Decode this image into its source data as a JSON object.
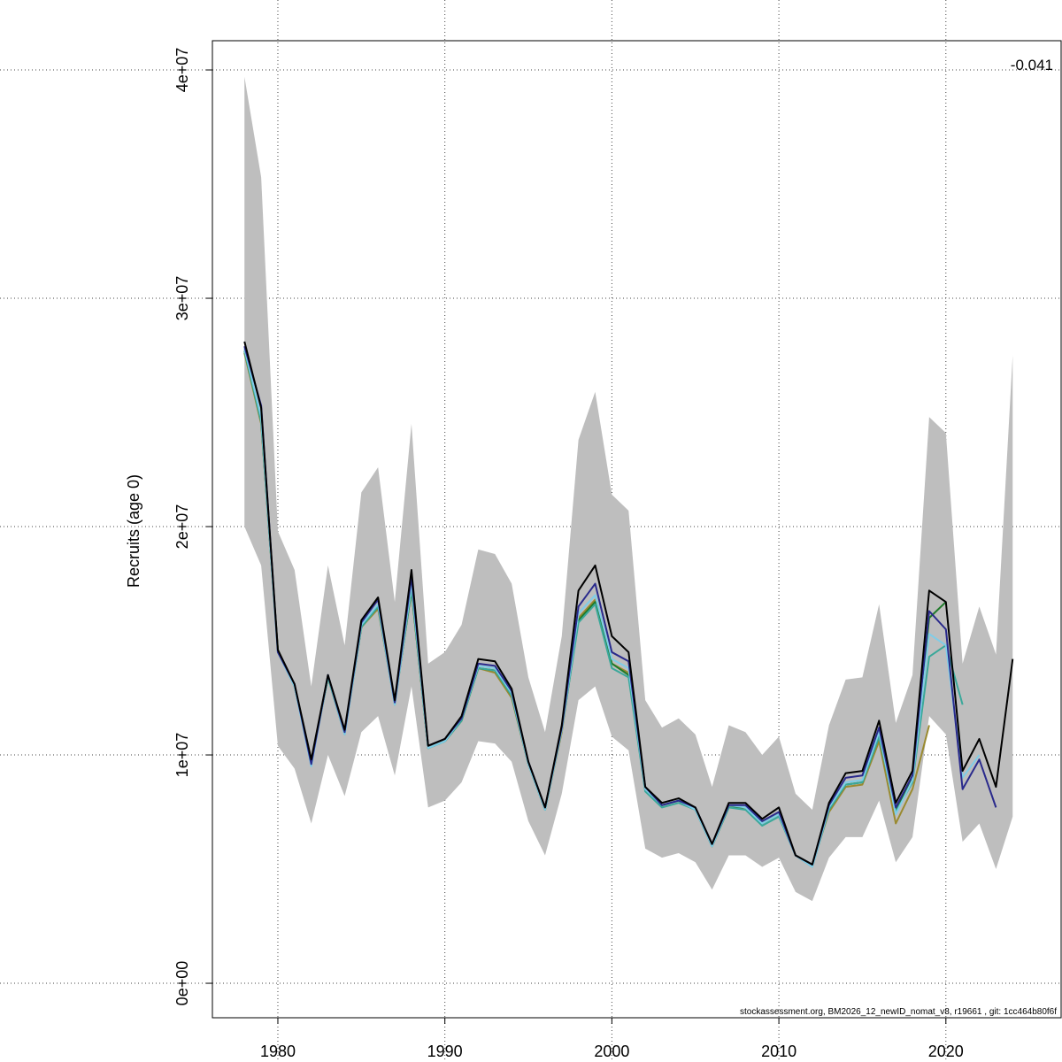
{
  "chart_data": {
    "type": "line",
    "y_label": "Recruits (age 0)",
    "annotation": "-0.041",
    "footer": "stockassessment.org, BM2026_12_newID_nomat_v8, r19661 , git: 1cc464b80f6f",
    "x": [
      1978,
      1979,
      1980,
      1981,
      1982,
      1983,
      1984,
      1985,
      1986,
      1987,
      1988,
      1989,
      1990,
      1991,
      1992,
      1993,
      1994,
      1995,
      1996,
      1997,
      1998,
      1999,
      2000,
      2001,
      2002,
      2003,
      2004,
      2005,
      2006,
      2007,
      2008,
      2009,
      2010,
      2011,
      2012,
      2013,
      2014,
      2015,
      2016,
      2017,
      2018,
      2019,
      2020,
      2021,
      2022,
      2023,
      2024
    ],
    "xlim": [
      1976.08,
      2026.9
    ],
    "xticks": [
      1980,
      1990,
      2000,
      2010,
      2020
    ],
    "ylim": [
      -1510000,
      41280000
    ],
    "yticks": [
      {
        "value": 0,
        "label": "0e+00"
      },
      {
        "value": 10000000,
        "label": "1e+07"
      },
      {
        "value": 20000000,
        "label": "2e+07"
      },
      {
        "value": 30000000,
        "label": "3e+07"
      },
      {
        "value": 40000000,
        "label": "4e+07"
      }
    ],
    "grid": true,
    "band": {
      "color": "#bebebe",
      "upper": [
        39700000.0,
        35300000.0,
        19800000.0,
        18100000.0,
        13000000.0,
        18300000.0,
        14800000.0,
        21500000.0,
        22600000.0,
        16700000.0,
        24500000.0,
        14000000.0,
        14500000.0,
        15700000.0,
        19000000.0,
        18800000.0,
        17500000.0,
        13400000.0,
        11000000.0,
        15200000.0,
        23800000.0,
        25900000.0,
        21400000.0,
        20700000.0,
        12400000.0,
        11200000.0,
        11600000.0,
        10900000.0,
        8600000.0,
        11300000.0,
        11000000.0,
        10000000.0,
        10800000.0,
        8300000.0,
        7600000.0,
        11300000.0,
        13300000.0,
        13400000.0,
        16600000.0,
        11400000.0,
        13500000.0,
        24800000.0,
        24100000.0,
        14000000.0,
        16500000.0,
        14400000.0,
        27500000.0
      ],
      "lower": [
        20000000.0,
        18300000.0,
        10400000.0,
        9400000.0,
        7000000.0,
        10000000.0,
        8200000.0,
        11000000.0,
        11700000.0,
        9100000.0,
        13000000.0,
        7700000.0,
        8000000.0,
        8800000.0,
        10600000.0,
        10500000.0,
        9700000.0,
        7100000.0,
        5600000.0,
        8300000.0,
        12400000.0,
        13000000.0,
        10800000.0,
        10200000.0,
        5900000.0,
        5500000.0,
        5700000.0,
        5300000.0,
        4100000.0,
        5600000.0,
        5600000.0,
        5100000.0,
        5500000.0,
        4000000.0,
        3600000.0,
        5500000.0,
        6400000.0,
        6400000.0,
        8000000.0,
        5300000.0,
        6400000.0,
        11700000.0,
        10900000.0,
        6200000.0,
        7000000.0,
        5000000.0,
        7300000.0
      ]
    },
    "series": [
      {
        "color": "#9a8a30",
        "values": [
          27600000.0,
          24500000.0,
          14600000.0,
          13000000.0,
          9700000.0,
          13400000.0,
          11000000.0,
          15600000.0,
          16400000.0,
          12300000.0,
          17200000.0,
          10300000.0,
          10600000.0,
          11500000.0,
          13800000.0,
          13600000.0,
          12500000.0,
          9600000.0,
          7600000.0,
          11000000.0,
          16000000.0,
          16800000.0,
          14000000.0,
          13600000.0,
          8500000.0,
          7800000.0,
          8000000.0,
          7600000.0,
          6000000.0,
          7700000.0,
          7700000.0,
          7000000.0,
          7400000.0,
          5600000.0,
          5200000.0,
          7500000.0,
          8600000.0,
          8700000.0,
          10600000.0,
          7000000.0,
          8500000.0,
          11300000.0,
          null,
          null,
          null,
          null,
          null
        ]
      },
      {
        "color": "#1f7a2a",
        "values": [
          27700000.0,
          24600000.0,
          14600000.0,
          13000000.0,
          9700000.0,
          13400000.0,
          11000000.0,
          15600000.0,
          16500000.0,
          12300000.0,
          17200000.0,
          10300000.0,
          10600000.0,
          11500000.0,
          13800000.0,
          13700000.0,
          12600000.0,
          9600000.0,
          7600000.0,
          11100000.0,
          15900000.0,
          16700000.0,
          14000000.0,
          13500000.0,
          8500000.0,
          7800000.0,
          8000000.0,
          7600000.0,
          6000000.0,
          7700000.0,
          7700000.0,
          7000000.0,
          7400000.0,
          5600000.0,
          5200000.0,
          7600000.0,
          8700000.0,
          8800000.0,
          10800000.0,
          7600000.0,
          9000000.0,
          16000000.0,
          16700000.0,
          null,
          null,
          null,
          null
        ]
      },
      {
        "color": "#3aa89a",
        "values": [
          27700000.0,
          24600000.0,
          14500000.0,
          13000000.0,
          9600000.0,
          13400000.0,
          10900000.0,
          15600000.0,
          16500000.0,
          12200000.0,
          17300000.0,
          10300000.0,
          10600000.0,
          11500000.0,
          13800000.0,
          13700000.0,
          12600000.0,
          9600000.0,
          7600000.0,
          11100000.0,
          15800000.0,
          16600000.0,
          13800000.0,
          13400000.0,
          8400000.0,
          7700000.0,
          7900000.0,
          7600000.0,
          6000000.0,
          7700000.0,
          7600000.0,
          6900000.0,
          7300000.0,
          5600000.0,
          5100000.0,
          7600000.0,
          8700000.0,
          8800000.0,
          10800000.0,
          7500000.0,
          8800000.0,
          14300000.0,
          14800000.0,
          12200000.0,
          null,
          null,
          null
        ]
      },
      {
        "color": "#7fcde8",
        "values": [
          27800000.0,
          24800000.0,
          14500000.0,
          13000000.0,
          9500000.0,
          13500000.0,
          10900000.0,
          15700000.0,
          16600000.0,
          12200000.0,
          17500000.0,
          10300000.0,
          10600000.0,
          11600000.0,
          13900000.0,
          13800000.0,
          12700000.0,
          9600000.0,
          7600000.0,
          11100000.0,
          16200000.0,
          17000000.0,
          14200000.0,
          13800000.0,
          8500000.0,
          7800000.0,
          8000000.0,
          7600000.0,
          6000000.0,
          7800000.0,
          7700000.0,
          7000000.0,
          7400000.0,
          5600000.0,
          5100000.0,
          7700000.0,
          8800000.0,
          8900000.0,
          11000000.0,
          7400000.0,
          8900000.0,
          15300000.0,
          14800000.0,
          9000000.0,
          10000000.0,
          null,
          null
        ]
      },
      {
        "color": "#2a2a8c",
        "values": [
          27900000.0,
          25300000.0,
          14500000.0,
          13100000.0,
          9600000.0,
          13500000.0,
          11000000.0,
          15800000.0,
          16800000.0,
          12300000.0,
          17800000.0,
          10400000.0,
          10700000.0,
          11600000.0,
          14000000.0,
          13900000.0,
          12800000.0,
          9700000.0,
          7700000.0,
          11200000.0,
          16500000.0,
          17500000.0,
          14500000.0,
          14100000.0,
          8600000.0,
          7800000.0,
          8000000.0,
          7700000.0,
          6100000.0,
          7800000.0,
          7800000.0,
          7100000.0,
          7500000.0,
          5600000.0,
          5200000.0,
          7800000.0,
          9000000.0,
          9100000.0,
          11200000.0,
          7700000.0,
          9100000.0,
          16300000.0,
          15500000.0,
          8500000.0,
          9800000.0,
          7700000.0,
          null
        ]
      },
      {
        "color": "#000000",
        "values": [
          28100000.0,
          25200000.0,
          14600000.0,
          13100000.0,
          9800000.0,
          13500000.0,
          11100000.0,
          15900000.0,
          16900000.0,
          12400000.0,
          18100000.0,
          10400000.0,
          10700000.0,
          11700000.0,
          14200000.0,
          14100000.0,
          12900000.0,
          9700000.0,
          7700000.0,
          11300000.0,
          17200000.0,
          18300000.0,
          15200000.0,
          14500000.0,
          8600000.0,
          7900000.0,
          8100000.0,
          7700000.0,
          6100000.0,
          7900000.0,
          7900000.0,
          7200000.0,
          7700000.0,
          5600000.0,
          5200000.0,
          7900000.0,
          9200000.0,
          9300000.0,
          11500000.0,
          7900000.0,
          9300000.0,
          17200000.0,
          16700000.0,
          9300000.0,
          10700000.0,
          8600000.0,
          14200000.0
        ]
      }
    ]
  }
}
